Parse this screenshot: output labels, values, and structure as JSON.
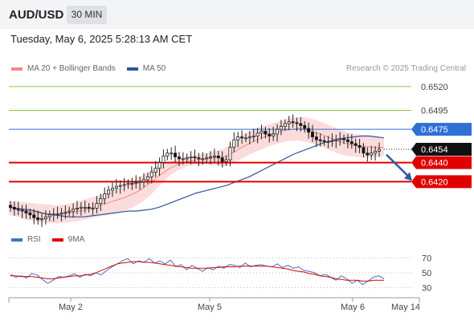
{
  "header": {
    "symbol": "AUD/USD",
    "timeframe": "30 MIN"
  },
  "timestamp": "Tuesday, May 6, 2025 5:28:13 AM CET",
  "credit": "Research © 2025 Trading Central",
  "legend": {
    "main": [
      {
        "label": "MA 20 + Bollinger Bands",
        "color": "#f08a8a"
      },
      {
        "label": "MA 50",
        "color": "#2f5597"
      }
    ],
    "rsi": [
      {
        "label": "RSI",
        "color": "#4472c4"
      },
      {
        "label": "9MA",
        "color": "#e00000"
      }
    ]
  },
  "chart_data": [
    {
      "type": "candlestick",
      "ylim": [
        0.6373,
        0.653
      ],
      "x_tick_labels": [
        "May 2",
        "May 5",
        "May 6",
        "May 14"
      ],
      "levels": [
        {
          "label": "0.6520",
          "value": 0.652,
          "color": "#8cc63f",
          "style": "line"
        },
        {
          "label": "0.6495",
          "value": 0.6495,
          "color": "#8cc63f",
          "style": "line"
        },
        {
          "label": "0.6475",
          "value": 0.6475,
          "color": "#2f6fd6",
          "style": "line-badge"
        },
        {
          "label": "0.6454",
          "value": 0.6454,
          "color": "#111111",
          "style": "dotted-badge"
        },
        {
          "label": "0.6440",
          "value": 0.644,
          "color": "#e00000",
          "style": "thick-badge"
        },
        {
          "label": "0.6420",
          "value": 0.642,
          "color": "#e00000",
          "style": "thick-badge"
        }
      ],
      "close_series": [
        0.6393,
        0.6391,
        0.639,
        0.6389,
        0.6387,
        0.6385,
        0.6382,
        0.638,
        0.6381,
        0.6383,
        0.6385,
        0.6386,
        0.6386,
        0.6387,
        0.6388,
        0.6389,
        0.6391,
        0.6392,
        0.6393,
        0.6393,
        0.6392,
        0.6392,
        0.6397,
        0.6402,
        0.6407,
        0.6411,
        0.6413,
        0.6415,
        0.6416,
        0.6417,
        0.6418,
        0.6418,
        0.6419,
        0.642,
        0.6422,
        0.6425,
        0.643,
        0.6434,
        0.644,
        0.6447,
        0.645,
        0.645,
        0.6446,
        0.6444,
        0.6444,
        0.6445,
        0.6446,
        0.6445,
        0.6444,
        0.6444,
        0.6445,
        0.6446,
        0.6447,
        0.6445,
        0.6441,
        0.6443,
        0.6456,
        0.6464,
        0.6467,
        0.6466,
        0.6466,
        0.6467,
        0.6468,
        0.6471,
        0.6473,
        0.647,
        0.6468,
        0.647,
        0.6475,
        0.6478,
        0.6481,
        0.6483,
        0.6482,
        0.6481,
        0.6479,
        0.6476,
        0.6472,
        0.6467,
        0.6464,
        0.6463,
        0.6462,
        0.6462,
        0.6463,
        0.6464,
        0.6465,
        0.6464,
        0.6462,
        0.646,
        0.6458,
        0.6456,
        0.645,
        0.6448,
        0.645,
        0.6452,
        0.6454
      ],
      "ma50_series": [
        0.6393,
        0.6392,
        0.6391,
        0.639,
        0.6388,
        0.6386,
        0.6385,
        0.6384,
        0.6383,
        0.6383,
        0.6383,
        0.6384,
        0.6385,
        0.6386,
        0.6387,
        0.6388,
        0.6389,
        0.6389,
        0.639,
        0.6391,
        0.6393,
        0.6396,
        0.6399,
        0.6402,
        0.6405,
        0.6408,
        0.641,
        0.6412,
        0.6414,
        0.6416,
        0.6419,
        0.6422,
        0.6425,
        0.6429,
        0.6433,
        0.6437,
        0.6441,
        0.6445,
        0.6449,
        0.6452,
        0.6455,
        0.6458,
        0.6461,
        0.6463,
        0.6465,
        0.6466,
        0.6467,
        0.6468,
        0.6468,
        0.6467,
        0.6466
      ],
      "bollinger_upper": [
        0.64,
        0.6399,
        0.6398,
        0.6397,
        0.6396,
        0.6395,
        0.6396,
        0.6398,
        0.6401,
        0.6404,
        0.6407,
        0.641,
        0.6414,
        0.6419,
        0.6425,
        0.6431,
        0.6437,
        0.6441,
        0.6444,
        0.6446,
        0.6448,
        0.645,
        0.6452,
        0.6455,
        0.6462,
        0.647,
        0.6475,
        0.6478,
        0.6481,
        0.6484,
        0.6487,
        0.6488,
        0.6487,
        0.6484,
        0.648,
        0.6476,
        0.6472,
        0.647,
        0.6469,
        0.6467,
        0.6465
      ],
      "bollinger_lower": [
        0.6385,
        0.6383,
        0.638,
        0.6378,
        0.6377,
        0.6376,
        0.6377,
        0.6378,
        0.638,
        0.6382,
        0.6384,
        0.6386,
        0.6388,
        0.6392,
        0.6397,
        0.6405,
        0.6415,
        0.6425,
        0.6432,
        0.6436,
        0.6438,
        0.6438,
        0.6437,
        0.6436,
        0.644,
        0.6445,
        0.645,
        0.6454,
        0.6458,
        0.6461,
        0.6463,
        0.6463,
        0.6461,
        0.6458,
        0.6454,
        0.645,
        0.6447,
        0.6446,
        0.6445,
        0.6446,
        0.6447
      ],
      "ma20_series": [
        0.6393,
        0.6391,
        0.6389,
        0.6387,
        0.6386,
        0.6385,
        0.6386,
        0.6388,
        0.639,
        0.6393,
        0.6396,
        0.6399,
        0.6402,
        0.6406,
        0.6411,
        0.6418,
        0.6426,
        0.6433,
        0.6438,
        0.6441,
        0.6443,
        0.6444,
        0.6445,
        0.6446,
        0.6451,
        0.6457,
        0.6462,
        0.6466,
        0.647,
        0.6473,
        0.6475,
        0.6476,
        0.6474,
        0.6471,
        0.6467,
        0.6463,
        0.646,
        0.6458,
        0.6457,
        0.6456,
        0.6456
      ],
      "forecast": {
        "from": 0.645,
        "to": 0.642
      }
    },
    {
      "type": "line",
      "ylim": [
        22,
        80
      ],
      "y_tick_labels": [
        "70",
        "50",
        "30"
      ],
      "y_ticks": [
        70,
        50,
        30
      ],
      "series": [
        {
          "name": "RSI",
          "values": [
            48,
            44,
            46,
            43,
            49,
            47,
            41,
            36,
            40,
            45,
            44,
            46,
            49,
            44,
            48,
            46,
            50,
            47,
            53,
            58,
            62,
            66,
            69,
            62,
            66,
            64,
            69,
            63,
            66,
            62,
            67,
            58,
            61,
            54,
            60,
            56,
            52,
            57,
            54,
            59,
            56,
            61,
            60,
            57,
            63,
            58,
            60,
            61,
            59,
            58,
            62,
            57,
            60,
            56,
            58,
            53,
            52,
            50,
            46,
            48,
            44,
            40,
            46,
            42,
            36,
            40,
            34,
            39,
            44,
            46,
            42
          ]
        },
        {
          "name": "9MA",
          "values": [
            46,
            46,
            45,
            45,
            45,
            44,
            43,
            42,
            42,
            43,
            44,
            45,
            46,
            46,
            47,
            48,
            50,
            53,
            56,
            59,
            62,
            63,
            64,
            65,
            65,
            64,
            64,
            63,
            62,
            61,
            60,
            59,
            58,
            57,
            56,
            56,
            56,
            56,
            57,
            57,
            58,
            58,
            58,
            59,
            59,
            59,
            59,
            59,
            59,
            58,
            57,
            56,
            55,
            53,
            52,
            51,
            49,
            48,
            46,
            45,
            44,
            42,
            41,
            40,
            40,
            40,
            39,
            39,
            40,
            40,
            40
          ]
        }
      ]
    }
  ]
}
